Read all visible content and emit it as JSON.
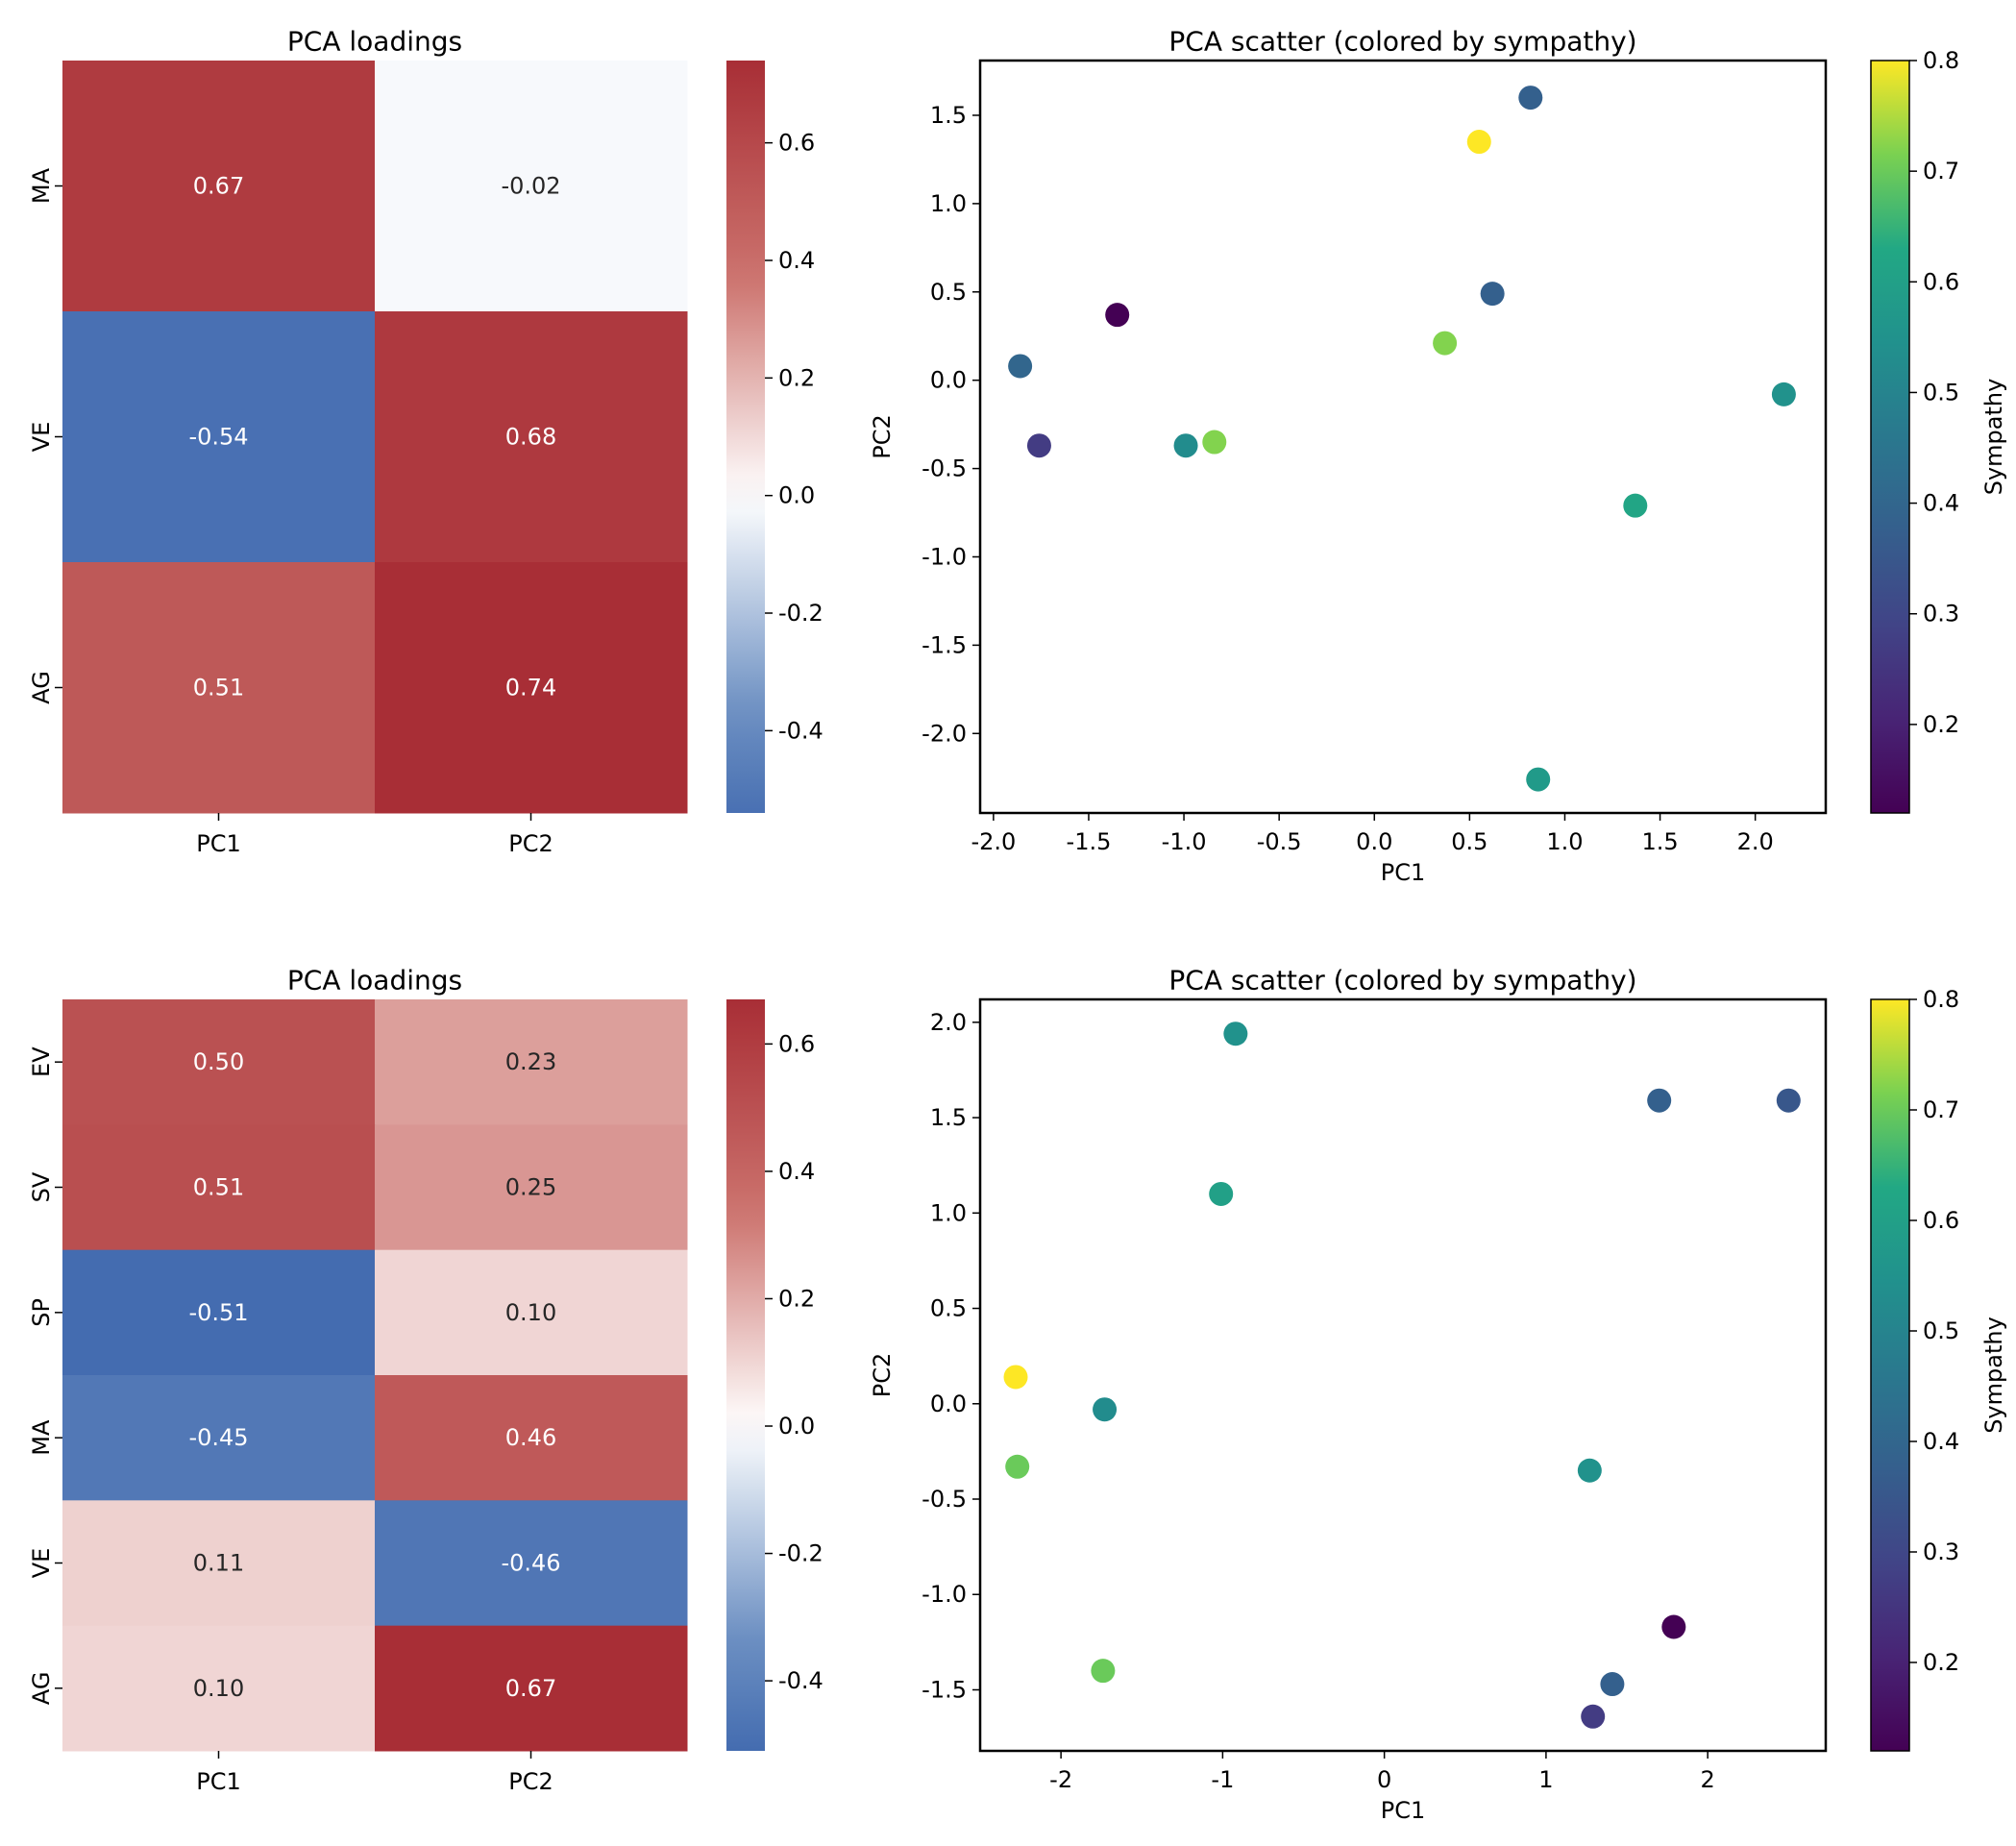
{
  "chart_data": [
    {
      "type": "heatmap",
      "title": "PCA loadings",
      "rows": [
        "MA",
        "VE",
        "AG"
      ],
      "cols": [
        "PC1",
        "PC2"
      ],
      "values": [
        [
          0.67,
          -0.02
        ],
        [
          -0.54,
          0.68
        ],
        [
          0.51,
          0.74
        ]
      ],
      "labels": [
        [
          "0.67",
          "-0.02"
        ],
        [
          "-0.54",
          "0.68"
        ],
        [
          "0.51",
          "0.74"
        ]
      ],
      "colormap": "vlag",
      "colorbar": {
        "range": [
          -0.54,
          0.74
        ],
        "ticks": [
          "-0.4",
          "-0.2",
          "0.0",
          "0.2",
          "0.4",
          "0.6"
        ]
      }
    },
    {
      "type": "scatter",
      "title": "PCA scatter (colored by sympathy)",
      "xlabel": "PC1",
      "ylabel": "PC2",
      "xlim": [
        -2.07,
        2.37
      ],
      "ylim": [
        -2.45,
        1.81
      ],
      "xticks": [
        "-2.0",
        "-1.5",
        "-1.0",
        "-0.5",
        "0.0",
        "0.5",
        "1.0",
        "1.5",
        "2.0"
      ],
      "yticks": [
        "-2.0",
        "-1.5",
        "-1.0",
        "-0.5",
        "0.0",
        "0.5",
        "1.0",
        "1.5"
      ],
      "colorbar": {
        "label": "Sympathy",
        "range": [
          0.12,
          0.8
        ],
        "ticks": [
          "0.2",
          "0.3",
          "0.4",
          "0.5",
          "0.6",
          "0.7",
          "0.8"
        ]
      },
      "points": [
        {
          "x": 0.82,
          "y": 1.6,
          "c": 0.38
        },
        {
          "x": 0.55,
          "y": 1.35,
          "c": 0.8
        },
        {
          "x": 0.62,
          "y": 0.49,
          "c": 0.38
        },
        {
          "x": -1.35,
          "y": 0.37,
          "c": 0.12
        },
        {
          "x": -1.86,
          "y": 0.08,
          "c": 0.4
        },
        {
          "x": 0.37,
          "y": 0.21,
          "c": 0.72
        },
        {
          "x": 2.15,
          "y": -0.08,
          "c": 0.55
        },
        {
          "x": -1.76,
          "y": -0.37,
          "c": 0.27
        },
        {
          "x": -0.99,
          "y": -0.37,
          "c": 0.53
        },
        {
          "x": -0.84,
          "y": -0.35,
          "c": 0.72
        },
        {
          "x": 1.37,
          "y": -0.71,
          "c": 0.62
        },
        {
          "x": 0.86,
          "y": -2.26,
          "c": 0.58
        }
      ]
    },
    {
      "type": "heatmap",
      "title": "PCA loadings",
      "rows": [
        "EV",
        "SV",
        "SP",
        "MA",
        "VE",
        "AG"
      ],
      "cols": [
        "PC1",
        "PC2"
      ],
      "values": [
        [
          0.5,
          0.23
        ],
        [
          0.51,
          0.25
        ],
        [
          -0.51,
          0.1
        ],
        [
          -0.45,
          0.46
        ],
        [
          0.11,
          -0.46
        ],
        [
          0.1,
          0.67
        ]
      ],
      "labels": [
        [
          "0.50",
          "0.23"
        ],
        [
          "0.51",
          "0.25"
        ],
        [
          "-0.51",
          "0.10"
        ],
        [
          "-0.45",
          "0.46"
        ],
        [
          "0.11",
          "-0.46"
        ],
        [
          "0.10",
          "0.67"
        ]
      ],
      "colormap": "vlag",
      "colorbar": {
        "range": [
          -0.51,
          0.67
        ],
        "ticks": [
          "-0.4",
          "-0.2",
          "0.0",
          "0.2",
          "0.4",
          "0.6"
        ]
      }
    },
    {
      "type": "scatter",
      "title": "PCA scatter (colored by sympathy)",
      "xlabel": "PC1",
      "ylabel": "PC2",
      "xlim": [
        -2.5,
        2.73
      ],
      "ylim": [
        -1.82,
        2.12
      ],
      "xticks": [
        "-2",
        "-1",
        "0",
        "1",
        "2"
      ],
      "yticks": [
        "-1.5",
        "-1.0",
        "-0.5",
        "0.0",
        "0.5",
        "1.0",
        "1.5",
        "2.0"
      ],
      "colorbar": {
        "label": "Sympathy",
        "range": [
          0.12,
          0.8
        ],
        "ticks": [
          "0.2",
          "0.3",
          "0.4",
          "0.5",
          "0.6",
          "0.7",
          "0.8"
        ]
      },
      "points": [
        {
          "x": -0.92,
          "y": 1.94,
          "c": 0.55
        },
        {
          "x": 1.7,
          "y": 1.59,
          "c": 0.38
        },
        {
          "x": 2.5,
          "y": 1.59,
          "c": 0.35
        },
        {
          "x": -1.01,
          "y": 1.1,
          "c": 0.6
        },
        {
          "x": -2.28,
          "y": 0.14,
          "c": 0.8
        },
        {
          "x": -1.73,
          "y": -0.03,
          "c": 0.53
        },
        {
          "x": -2.27,
          "y": -0.33,
          "c": 0.7
        },
        {
          "x": 1.27,
          "y": -0.35,
          "c": 0.55
        },
        {
          "x": 1.79,
          "y": -1.17,
          "c": 0.12
        },
        {
          "x": 1.41,
          "y": -1.47,
          "c": 0.38
        },
        {
          "x": 1.29,
          "y": -1.64,
          "c": 0.27
        },
        {
          "x": -1.74,
          "y": -1.4,
          "c": 0.7
        }
      ]
    }
  ]
}
